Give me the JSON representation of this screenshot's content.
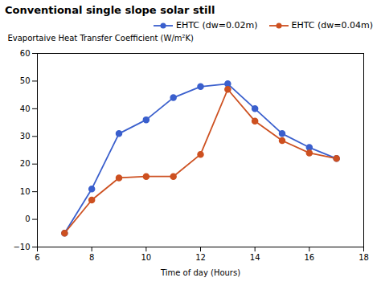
{
  "chart_data": {
    "type": "line",
    "title": "Conventional single slope solar still",
    "xlabel": "Time of day (Hours)",
    "ylabel": "Evaportaive Heat Transfer Coefficient (W/m²K)",
    "x": [
      7,
      8,
      9,
      10,
      11,
      12,
      13,
      14,
      15,
      16,
      17
    ],
    "series": [
      {
        "name": "EHTC (dw=0.02m)",
        "color": "#3A5FCD",
        "values": [
          -5,
          11,
          31,
          36,
          44,
          48,
          49,
          40,
          31,
          26,
          22
        ]
      },
      {
        "name": "EHTC (dw=0.04m)",
        "color": "#CD5020",
        "values": [
          -5,
          7,
          15,
          15.5,
          15.5,
          23.5,
          47,
          35.5,
          28.5,
          24,
          22
        ]
      }
    ],
    "xlim": [
      6,
      18
    ],
    "ylim": [
      -10,
      60
    ],
    "xticks": [
      6,
      8,
      10,
      12,
      14,
      16,
      18
    ],
    "yticks": [
      -10,
      0,
      10,
      20,
      30,
      40,
      50,
      60
    ],
    "marker": "circle",
    "legend": "upper right"
  }
}
